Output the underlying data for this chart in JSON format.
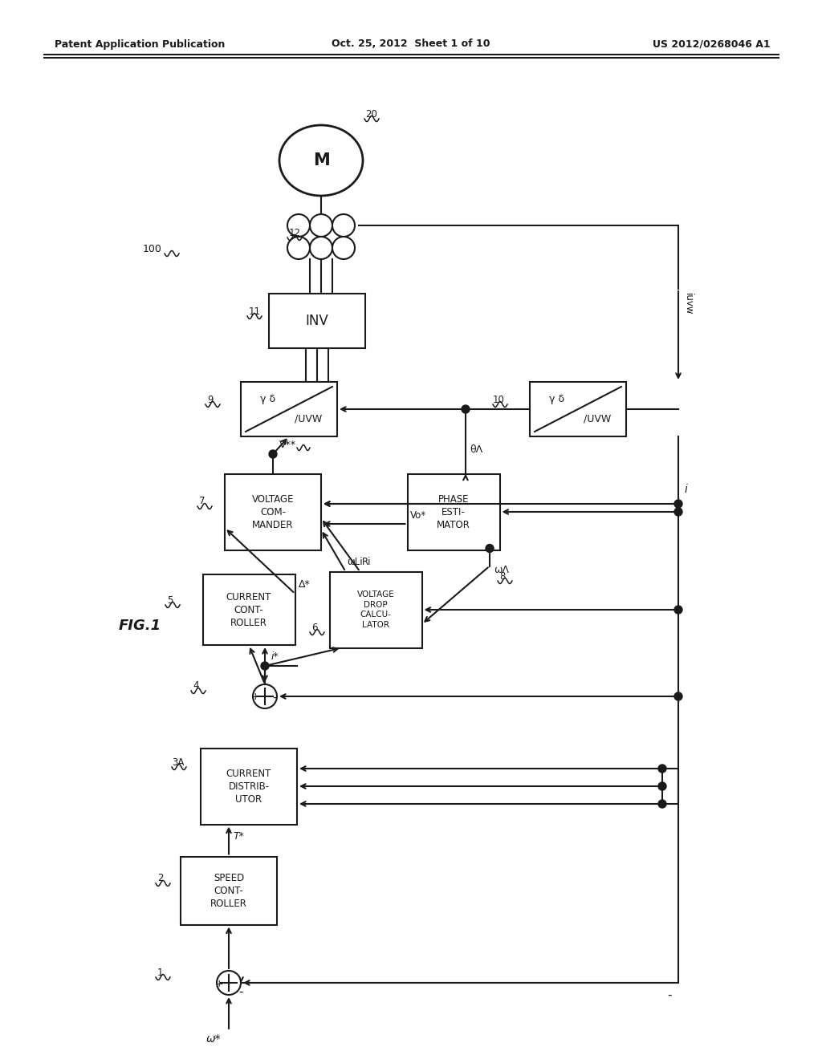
{
  "background_color": "#ffffff",
  "header_left": "Patent Application Publication",
  "header_center": "Oct. 25, 2012  Sheet 1 of 10",
  "header_right": "US 2012/0268046 A1",
  "line_color": "#1a1a1a",
  "text_color": "#1a1a1a"
}
